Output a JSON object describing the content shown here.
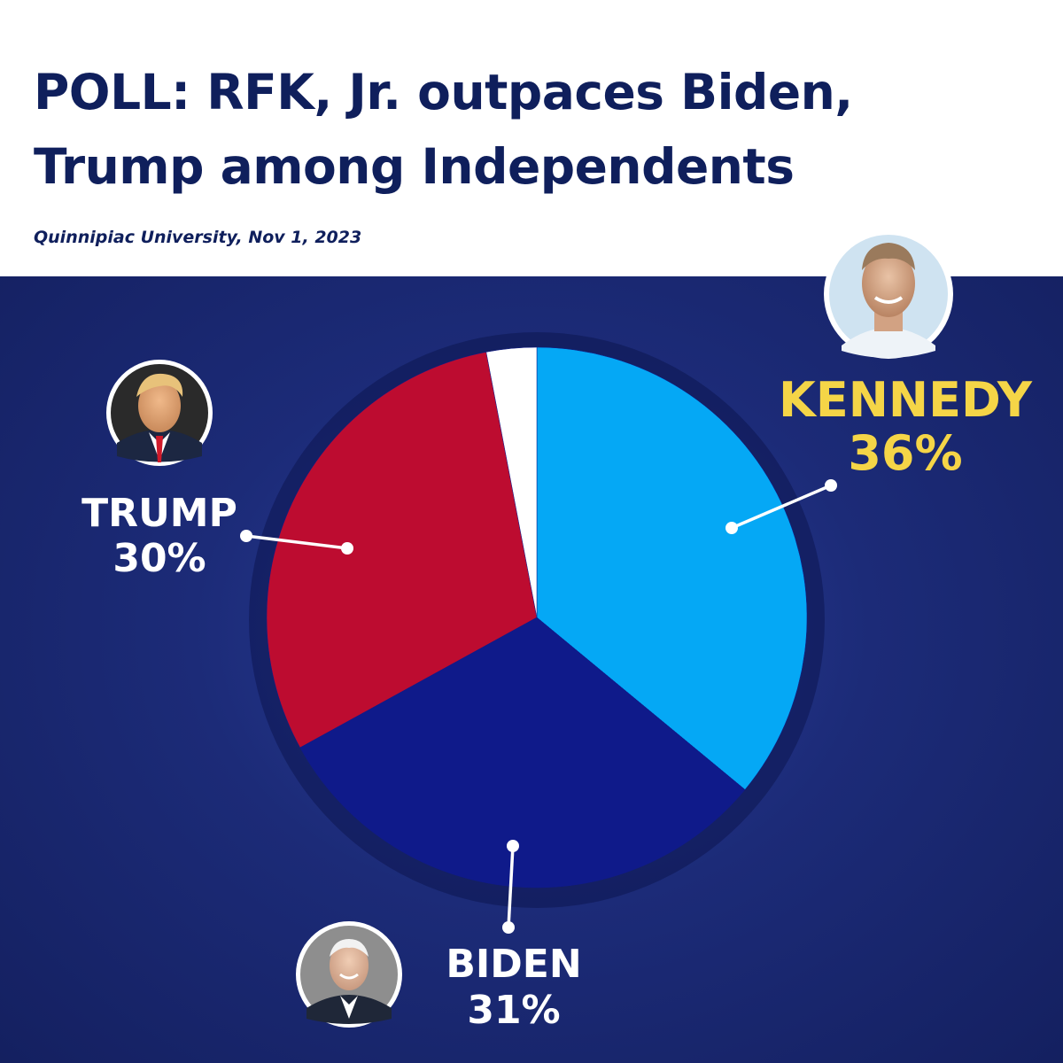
{
  "header": {
    "title_line1": "POLL: RFK, Jr. outpaces Biden,",
    "title_line2": "Trump among Independents",
    "source": "Quinnipiac University, Nov 1, 2023"
  },
  "colors": {
    "kennedy": "#05a8f5",
    "biden": "#0f1a8a",
    "trump": "#bd0c30",
    "other": "#ffffff",
    "kennedy_label": "#f5d547",
    "label": "#ffffff",
    "title": "#0f1f5c"
  },
  "chart_data": {
    "type": "pie",
    "title": "POLL: RFK, Jr. outpaces Biden, Trump among Independents",
    "subtitle": "Quinnipiac University, Nov 1, 2023",
    "start": "12 o'clock",
    "direction": "clockwise",
    "slices": [
      {
        "name": "KENNEDY",
        "value": 36,
        "display": "36%",
        "color": "#05a8f5"
      },
      {
        "name": "BIDEN",
        "value": 31,
        "display": "31%",
        "color": "#0f1a8a"
      },
      {
        "name": "TRUMP",
        "value": 30,
        "display": "30%",
        "color": "#bd0c30"
      },
      {
        "name": "",
        "value": 3,
        "display": "",
        "color": "#ffffff"
      }
    ]
  },
  "portraits": {
    "kennedy": "kennedy-portrait-icon",
    "trump": "trump-portrait-icon",
    "biden": "biden-portrait-icon"
  }
}
